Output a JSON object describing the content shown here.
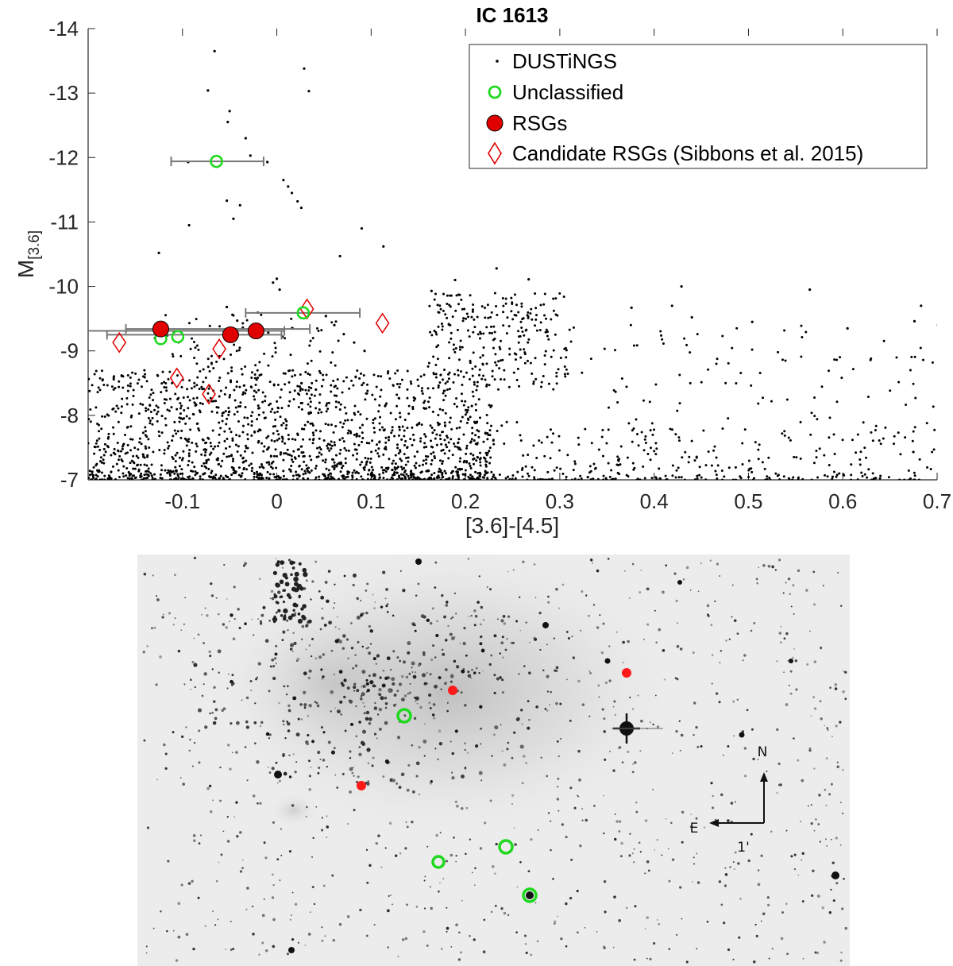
{
  "chart_data": {
    "type": "scatter",
    "title": "IC 1613",
    "xlabel": "[3.6]-[4.5]",
    "ylabel_main": "M",
    "ylabel_sub": "[3.6]",
    "xlim": [
      -0.2,
      0.7
    ],
    "ylim": [
      -14,
      -7
    ],
    "y_reversed": true,
    "xticks": [
      -0.1,
      0,
      0.1,
      0.2,
      0.3,
      0.4,
      0.5,
      0.6,
      0.7
    ],
    "xtick_labels": [
      "-0.1",
      "0",
      "0.1",
      "0.2",
      "0.3",
      "0.4",
      "0.5",
      "0.6",
      "0.7"
    ],
    "yticks": [
      -14,
      -13,
      -12,
      -11,
      -10,
      -9,
      -8,
      -7
    ],
    "ytick_labels": [
      "-14",
      "-13",
      "-12",
      "-11",
      "-10",
      "-9",
      "-8",
      "-7"
    ],
    "grid": false,
    "legend_position": "top-right",
    "legend": [
      {
        "name": "DUSTiNGS",
        "marker": "dot",
        "color": "#000000"
      },
      {
        "name": "Unclassified",
        "marker": "open-circle",
        "color": "#1fd81f"
      },
      {
        "name": "RSGs",
        "marker": "filled-circle",
        "color": "#e00000"
      },
      {
        "name": "Candidate RSGs (Sibbons et al. 2015)",
        "marker": "open-diamond",
        "color": "#e00000"
      }
    ],
    "series": [
      {
        "name": "DUSTiNGS",
        "points": [
          [
            -0.066,
            -13.65
          ],
          [
            0.029,
            -13.38
          ],
          [
            -0.073,
            -13.04
          ],
          [
            0.034,
            -13.03
          ],
          [
            -0.05,
            -12.72
          ],
          [
            -0.052,
            -12.55
          ],
          [
            -0.033,
            -12.3
          ],
          [
            -0.028,
            -12.03
          ],
          [
            -0.094,
            -11.93
          ],
          [
            -0.01,
            -11.93
          ],
          [
            -0.053,
            -11.33
          ],
          [
            -0.046,
            -11.05
          ],
          [
            0.007,
            -11.65
          ],
          [
            0.012,
            -11.55
          ],
          [
            0.016,
            -11.45
          ],
          [
            0.022,
            -11.32
          ],
          [
            0.026,
            -11.22
          ],
          [
            -0.039,
            -11.26
          ],
          [
            -0.093,
            -10.95
          ],
          [
            0.09,
            -10.9
          ],
          [
            0.113,
            -10.62
          ],
          [
            0.067,
            -10.47
          ],
          [
            -0.125,
            -10.52
          ],
          [
            0.0,
            -10.12
          ],
          [
            -0.004,
            -10.06
          ],
          [
            0.003,
            -9.95
          ],
          [
            0.189,
            -10.1
          ],
          [
            0.164,
            -9.93
          ],
          [
            0.233,
            -10.28
          ],
          [
            0.267,
            -10.11
          ],
          [
            0.376,
            -9.67
          ],
          [
            0.429,
            -10.0
          ],
          [
            0.565,
            -9.95
          ],
          [
            0.419,
            -9.7
          ],
          [
            0.683,
            -9.7
          ],
          [
            0.676,
            -9.46
          ],
          [
            0.701,
            -9.4
          ],
          [
            0.712,
            -9.3
          ],
          [
            0.44,
            -9.52
          ],
          [
            0.504,
            -9.45
          ],
          [
            0.605,
            -9.35
          ],
          [
            -0.053,
            -9.68
          ],
          [
            -0.047,
            -9.56
          ],
          [
            -0.042,
            -9.47
          ],
          [
            -0.036,
            -9.36
          ],
          [
            0.052,
            -9.54
          ],
          [
            0.061,
            -9.4
          ],
          [
            0.071,
            -9.26
          ],
          [
            0.082,
            -9.13
          ],
          [
            0.093,
            -9.0
          ]
        ]
      },
      {
        "name": "Unclassified",
        "points": [
          [
            -0.064,
            -11.94
          ],
          [
            0.028,
            -9.59
          ],
          [
            -0.123,
            -9.19
          ],
          [
            -0.105,
            -9.22
          ]
        ],
        "xerr": [
          [
            -0.112,
            -0.014
          ],
          [
            -0.033,
            0.088
          ],
          null,
          null
        ]
      },
      {
        "name": "RSGs",
        "points": [
          [
            -0.123,
            -9.34
          ],
          [
            -0.049,
            -9.25
          ],
          [
            -0.022,
            -9.31
          ]
        ],
        "xerr": [
          [
            -0.16,
            0.035
          ],
          [
            -0.18,
            0.005
          ],
          [
            -0.2,
            0.008
          ]
        ]
      },
      {
        "name": "Candidate RSGs (Sibbons et al. 2015)",
        "points": [
          [
            -0.167,
            -9.13
          ],
          [
            -0.106,
            -8.58
          ],
          [
            -0.061,
            -9.03
          ],
          [
            -0.072,
            -8.33
          ],
          [
            0.032,
            -9.65
          ],
          [
            0.112,
            -9.43
          ]
        ]
      }
    ]
  },
  "sky_image": {
    "labels": {
      "north": "N",
      "east": "E",
      "scale": "1'"
    },
    "rsg_color": "#ff1a1a",
    "unclassified_color": "#1fd81f"
  }
}
